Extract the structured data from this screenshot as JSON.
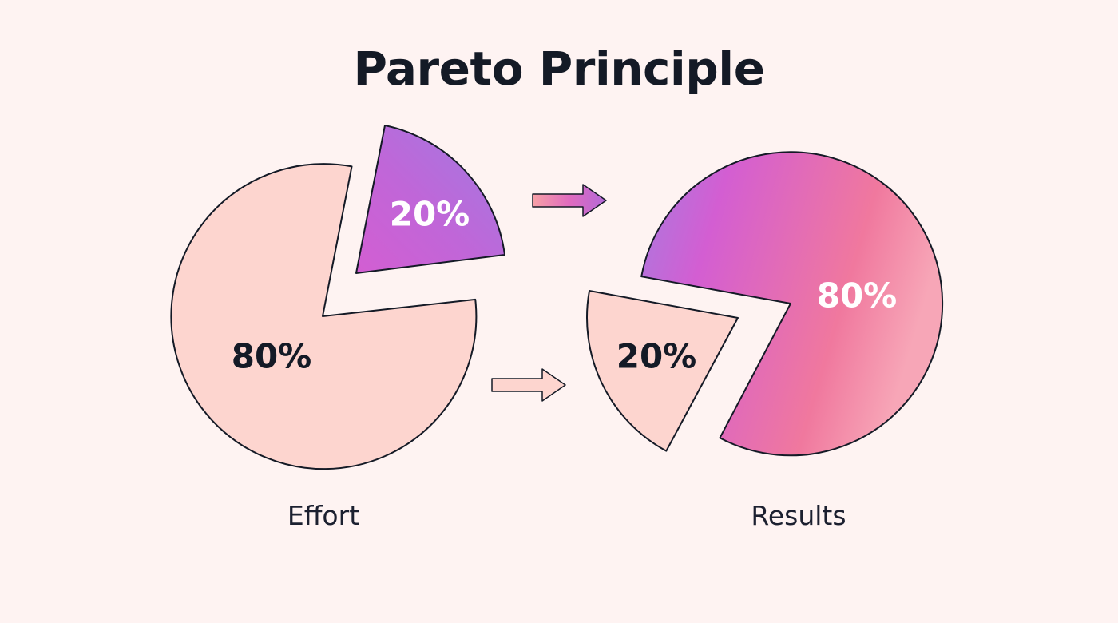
{
  "title": "Pareto Principle",
  "colors": {
    "background": "#fef3f2",
    "light_slice": "#fdd5cf",
    "gradient_purple": "#a77be0",
    "gradient_magenta": "#d35ed2",
    "gradient_pink": "#f2799b",
    "outline": "#141a26"
  },
  "effort": {
    "major_label": "80%",
    "minor_label": "20%",
    "caption": "Effort"
  },
  "results": {
    "major_label": "80%",
    "minor_label": "20%",
    "caption": "Results"
  },
  "arrows": {
    "top": "right-arrow-icon",
    "bottom": "right-arrow-icon"
  }
}
